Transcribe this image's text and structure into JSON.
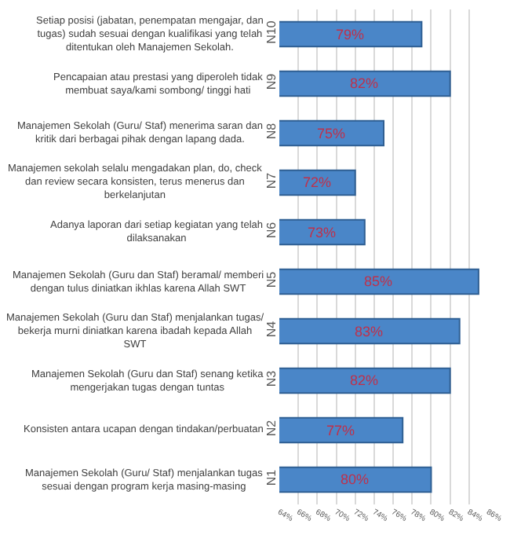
{
  "chart_data": {
    "type": "bar",
    "orientation": "horizontal",
    "categories": [
      "N10",
      "N9",
      "N8",
      "N7",
      "N6",
      "N5",
      "N4",
      "N3",
      "N2",
      "N1"
    ],
    "values": [
      79,
      82,
      75,
      72,
      73,
      85,
      83,
      82,
      77,
      80
    ],
    "value_labels": [
      "79%",
      "82%",
      "75%",
      "72%",
      "73%",
      "85%",
      "83%",
      "82%",
      "77%",
      "80%"
    ],
    "color": "#4a86c8",
    "xlim": [
      64,
      86
    ],
    "xticks": [
      {
        "value": 64,
        "label": "64%"
      },
      {
        "value": 66,
        "label": "66%"
      },
      {
        "value": 68,
        "label": "68%"
      },
      {
        "value": 70,
        "label": "70%"
      },
      {
        "value": 72,
        "label": "72%"
      },
      {
        "value": 74,
        "label": "74%"
      },
      {
        "value": 76,
        "label": "76%"
      },
      {
        "value": 78,
        "label": "78%"
      },
      {
        "value": 80,
        "label": "80%"
      },
      {
        "value": 82,
        "label": "82%"
      },
      {
        "value": 84,
        "label": "84%"
      },
      {
        "value": 86,
        "label": "86%"
      }
    ],
    "grid": "x",
    "annotations": [
      {
        "text": "Setiap posisi (jabatan, penempatan mengajar, dan tugas) sudah sesuai dengan kualifikasi yang telah ditentukan oleh Manajemen Sekolah.",
        "y": "N10"
      },
      {
        "text": "Pencapaian atau prestasi yang diperoleh tidak membuat saya/kami sombong/ tinggi hati",
        "y": "N9"
      },
      {
        "text": "Manajemen Sekolah (Guru/ Staf) menerima saran dan kritik dari berbagai pihak dengan lapang dada.",
        "y": "N8"
      },
      {
        "text": "Manajemen sekolah selalu mengadakan plan, do, check dan review secara konsisten, terus menerus dan berkelanjutan",
        "y": "N7"
      },
      {
        "text": "Adanya laporan dari setiap kegiatan yang telah dilaksanakan",
        "y": "N6"
      },
      {
        "text": "Manajemen Sekolah (Guru dan Staf) beramal/ memberi dengan tulus diniatkan ikhlas karena Allah SWT",
        "y": "N5"
      },
      {
        "text": "Manajemen Sekolah (Guru dan Staf) menjalankan tugas/ bekerja murni diniatkan karena ibadah kepada Allah SWT",
        "y": "N4"
      },
      {
        "text": "Manajemen Sekolah (Guru dan Staf) senang ketika mengerjakan tugas dengan tuntas",
        "y": "N3"
      },
      {
        "text": "Konsisten antara ucapan dengan tindakan/perbuatan",
        "y": "N2"
      },
      {
        "text": "Manajemen Sekolah (Guru/ Staf) menjalankan tugas sesuai dengan program kerja masing-masing",
        "y": "N1"
      }
    ]
  }
}
